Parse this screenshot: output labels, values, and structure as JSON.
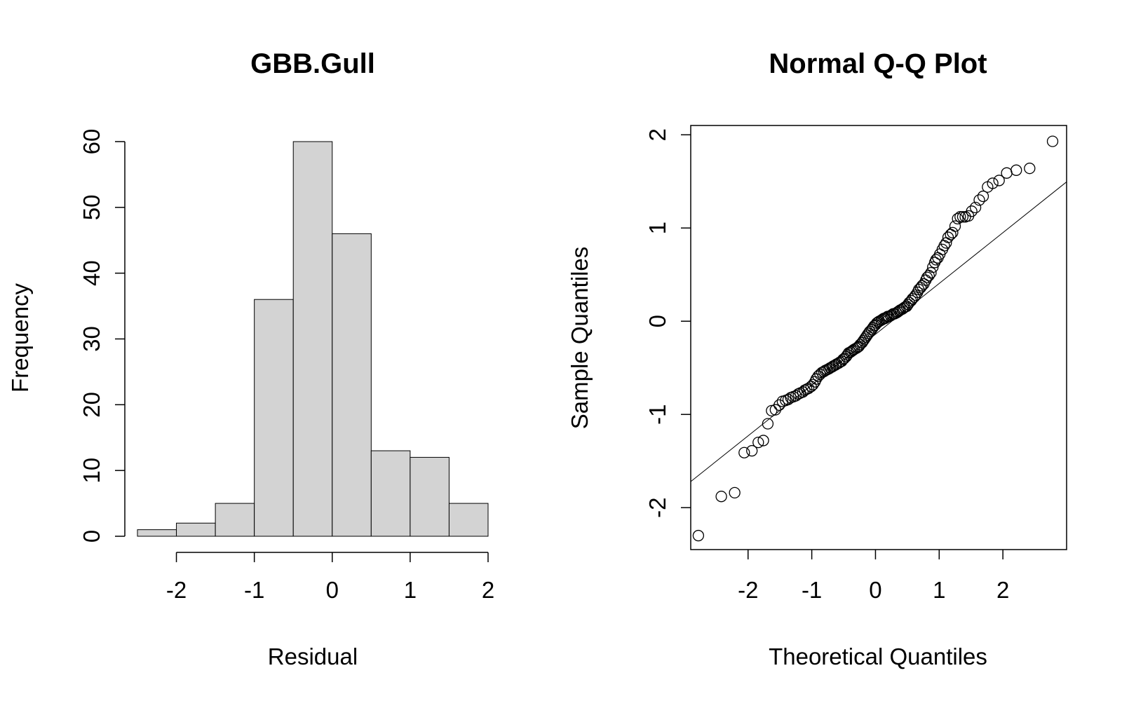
{
  "chart_data": [
    {
      "type": "bar",
      "title": "GBB.Gull",
      "xlabel": "Residual",
      "ylabel": "Frequency",
      "bins": [
        {
          "from": -2.5,
          "to": -2.0,
          "count": 1
        },
        {
          "from": -2.0,
          "to": -1.5,
          "count": 2
        },
        {
          "from": -1.5,
          "to": -1.0,
          "count": 5
        },
        {
          "from": -1.0,
          "to": -0.5,
          "count": 36
        },
        {
          "from": -0.5,
          "to": 0.0,
          "count": 60
        },
        {
          "from": 0.0,
          "to": 0.5,
          "count": 46
        },
        {
          "from": 0.5,
          "to": 1.0,
          "count": 13
        },
        {
          "from": 1.0,
          "to": 1.5,
          "count": 12
        },
        {
          "from": 1.5,
          "to": 2.0,
          "count": 5
        }
      ],
      "xlim": [
        -2.5,
        2.0
      ],
      "ylim": [
        0,
        60
      ],
      "xticks": [
        -2,
        -1,
        0,
        1,
        2
      ],
      "xtick_labels": [
        "-2",
        "-1",
        "0",
        "1",
        "2"
      ],
      "yticks": [
        0,
        10,
        20,
        30,
        40,
        50,
        60
      ],
      "ytick_labels": [
        "0",
        "10",
        "20",
        "30",
        "40",
        "50",
        "60"
      ],
      "bar_fill": "#d3d3d3",
      "bar_stroke": "#000000",
      "grid": false
    },
    {
      "type": "scatter",
      "title": "Normal Q-Q Plot",
      "xlabel": "Theoretical Quantiles",
      "ylabel": "Sample Quantiles",
      "xlim": [
        -2.9,
        3.0
      ],
      "ylim": [
        -2.45,
        2.1
      ],
      "xticks": [
        -2,
        -1,
        0,
        1,
        2
      ],
      "xtick_labels": [
        "-2",
        "-1",
        "0",
        "1",
        "2"
      ],
      "yticks": [
        -2,
        -1,
        0,
        1,
        2
      ],
      "ytick_labels": [
        "-2",
        "-1",
        "0",
        "1",
        "2"
      ],
      "reference_line": {
        "intercept": -0.14,
        "slope": 0.545
      },
      "points": [
        [
          -2.78,
          -2.3
        ],
        [
          -2.42,
          -1.88
        ],
        [
          -2.21,
          -1.84
        ],
        [
          -2.06,
          -1.41
        ],
        [
          -1.94,
          -1.39
        ],
        [
          -1.84,
          -1.3
        ],
        [
          -1.76,
          -1.28
        ],
        [
          -1.69,
          -1.1
        ],
        [
          -1.63,
          -0.96
        ],
        [
          -1.57,
          -0.95
        ],
        [
          -1.51,
          -0.9
        ],
        [
          -1.46,
          -0.86
        ],
        [
          -1.41,
          -0.85
        ],
        [
          -1.37,
          -0.84
        ],
        [
          -1.33,
          -0.82
        ],
        [
          -1.29,
          -0.81
        ],
        [
          -1.25,
          -0.8
        ],
        [
          -1.21,
          -0.78
        ],
        [
          -1.18,
          -0.77
        ],
        [
          -1.14,
          -0.76
        ],
        [
          -1.11,
          -0.74
        ],
        [
          -1.08,
          -0.73
        ],
        [
          -1.05,
          -0.72
        ],
        [
          -1.01,
          -0.7
        ],
        [
          -0.98,
          -0.68
        ],
        [
          -0.95,
          -0.65
        ],
        [
          -0.93,
          -0.62
        ],
        [
          -0.9,
          -0.59
        ],
        [
          -0.87,
          -0.57
        ],
        [
          -0.84,
          -0.55
        ],
        [
          -0.81,
          -0.54
        ],
        [
          -0.79,
          -0.53
        ],
        [
          -0.76,
          -0.52
        ],
        [
          -0.73,
          -0.51
        ],
        [
          -0.71,
          -0.5
        ],
        [
          -0.68,
          -0.49
        ],
        [
          -0.66,
          -0.48
        ],
        [
          -0.63,
          -0.47
        ],
        [
          -0.61,
          -0.46
        ],
        [
          -0.58,
          -0.45
        ],
        [
          -0.56,
          -0.44
        ],
        [
          -0.53,
          -0.43
        ],
        [
          -0.51,
          -0.41
        ],
        [
          -0.49,
          -0.4
        ],
        [
          -0.46,
          -0.38
        ],
        [
          -0.44,
          -0.36
        ],
        [
          -0.42,
          -0.34
        ],
        [
          -0.39,
          -0.33
        ],
        [
          -0.37,
          -0.32
        ],
        [
          -0.35,
          -0.31
        ],
        [
          -0.33,
          -0.3
        ],
        [
          -0.3,
          -0.29
        ],
        [
          -0.28,
          -0.28
        ],
        [
          -0.26,
          -0.27
        ],
        [
          -0.24,
          -0.25
        ],
        [
          -0.21,
          -0.23
        ],
        [
          -0.19,
          -0.21
        ],
        [
          -0.17,
          -0.19
        ],
        [
          -0.15,
          -0.17
        ],
        [
          -0.13,
          -0.15
        ],
        [
          -0.11,
          -0.13
        ],
        [
          -0.09,
          -0.11
        ],
        [
          -0.06,
          -0.09
        ],
        [
          -0.04,
          -0.07
        ],
        [
          -0.02,
          -0.05
        ],
        [
          0.0,
          -0.04
        ],
        [
          0.02,
          -0.02
        ],
        [
          0.04,
          -0.01
        ],
        [
          0.06,
          0.0
        ],
        [
          0.09,
          0.01
        ],
        [
          0.11,
          0.02
        ],
        [
          0.13,
          0.03
        ],
        [
          0.15,
          0.03
        ],
        [
          0.17,
          0.04
        ],
        [
          0.19,
          0.05
        ],
        [
          0.21,
          0.05
        ],
        [
          0.24,
          0.06
        ],
        [
          0.26,
          0.07
        ],
        [
          0.28,
          0.08
        ],
        [
          0.3,
          0.08
        ],
        [
          0.33,
          0.09
        ],
        [
          0.35,
          0.1
        ],
        [
          0.37,
          0.11
        ],
        [
          0.39,
          0.12
        ],
        [
          0.42,
          0.13
        ],
        [
          0.44,
          0.14
        ],
        [
          0.46,
          0.15
        ],
        [
          0.49,
          0.16
        ],
        [
          0.51,
          0.18
        ],
        [
          0.53,
          0.2
        ],
        [
          0.56,
          0.22
        ],
        [
          0.58,
          0.24
        ],
        [
          0.61,
          0.26
        ],
        [
          0.63,
          0.28
        ],
        [
          0.66,
          0.31
        ],
        [
          0.68,
          0.34
        ],
        [
          0.71,
          0.36
        ],
        [
          0.73,
          0.38
        ],
        [
          0.76,
          0.4
        ],
        [
          0.79,
          0.44
        ],
        [
          0.81,
          0.47
        ],
        [
          0.84,
          0.49
        ],
        [
          0.87,
          0.52
        ],
        [
          0.9,
          0.58
        ],
        [
          0.93,
          0.63
        ],
        [
          0.95,
          0.66
        ],
        [
          0.98,
          0.68
        ],
        [
          1.01,
          0.72
        ],
        [
          1.05,
          0.77
        ],
        [
          1.08,
          0.81
        ],
        [
          1.11,
          0.84
        ],
        [
          1.14,
          0.9
        ],
        [
          1.18,
          0.93
        ],
        [
          1.21,
          0.95
        ],
        [
          1.25,
          1.02
        ],
        [
          1.29,
          1.1
        ],
        [
          1.33,
          1.12
        ],
        [
          1.37,
          1.12
        ],
        [
          1.41,
          1.12
        ],
        [
          1.46,
          1.13
        ],
        [
          1.51,
          1.18
        ],
        [
          1.57,
          1.22
        ],
        [
          1.63,
          1.3
        ],
        [
          1.69,
          1.34
        ],
        [
          1.76,
          1.44
        ],
        [
          1.84,
          1.48
        ],
        [
          1.94,
          1.51
        ],
        [
          2.06,
          1.59
        ],
        [
          2.21,
          1.62
        ],
        [
          2.42,
          1.64
        ],
        [
          2.78,
          1.93
        ]
      ],
      "grid": false
    }
  ]
}
